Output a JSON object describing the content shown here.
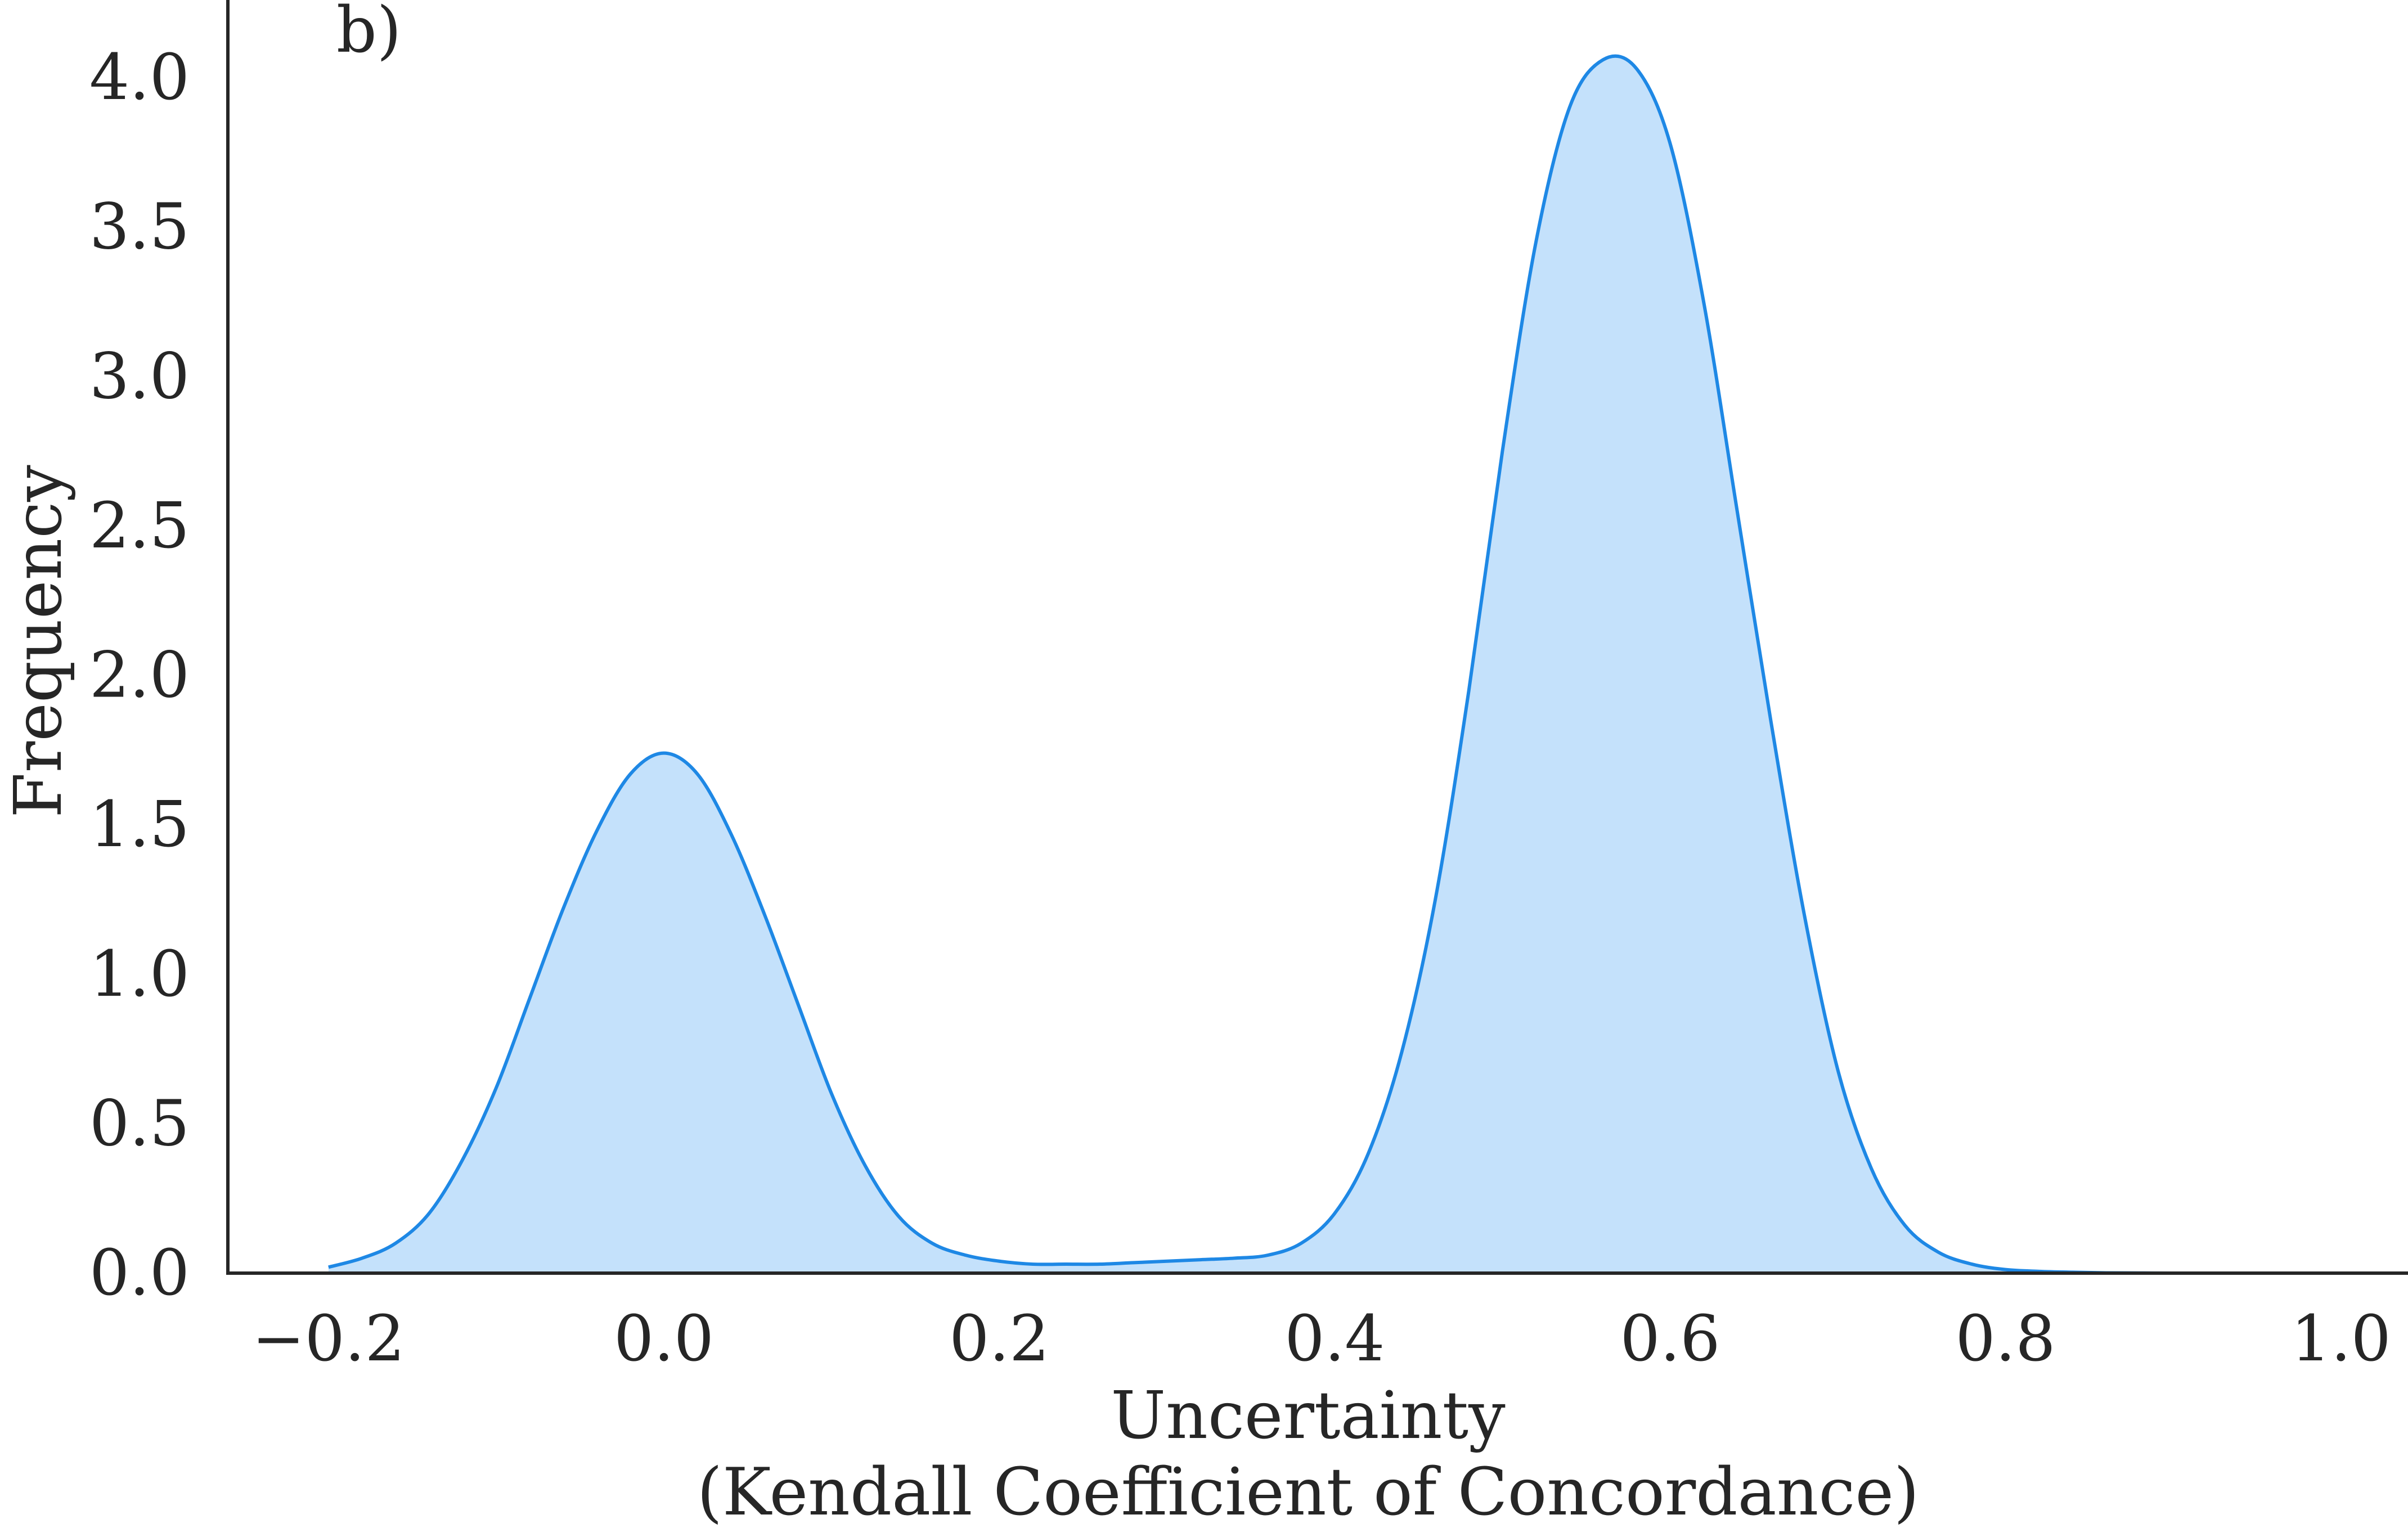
{
  "chart_data": {
    "type": "area",
    "panel_label": "b)",
    "xlabel": "Uncertainty",
    "xlabel_line2": "(Kendall Coefficient of Concordance)",
    "ylabel": "Frequency",
    "xlim": [
      -0.26,
      1.04
    ],
    "ylim": [
      0.0,
      4.26
    ],
    "xticks": [
      -0.2,
      0.0,
      0.2,
      0.4,
      0.6,
      0.8,
      1.0
    ],
    "xtick_labels": [
      "−0.2",
      "0.0",
      "0.2",
      "0.4",
      "0.6",
      "0.8",
      "1.0"
    ],
    "yticks": [
      0.0,
      0.5,
      1.0,
      1.5,
      2.0,
      2.5,
      3.0,
      3.5,
      4.0
    ],
    "ytick_labels": [
      "0.0",
      "0.5",
      "1.0",
      "1.5",
      "2.0",
      "2.5",
      "3.0",
      "3.5",
      "4.0"
    ],
    "grid": false,
    "colors": {
      "line": "#1e88e5",
      "fill": "#c4e1fb",
      "axis": "#262626"
    },
    "series": [
      {
        "x": [
          -0.2,
          -0.18,
          -0.16,
          -0.14,
          -0.12,
          -0.1,
          -0.08,
          -0.06,
          -0.04,
          -0.02,
          0.0,
          0.02,
          0.04,
          0.06,
          0.08,
          0.1,
          0.12,
          0.14,
          0.16,
          0.18,
          0.2,
          0.22,
          0.24,
          0.26,
          0.28,
          0.3,
          0.32,
          0.34,
          0.36,
          0.38,
          0.4,
          0.42,
          0.44,
          0.46,
          0.48,
          0.5,
          0.52,
          0.54,
          0.56,
          0.58,
          0.6,
          0.62,
          0.64,
          0.66,
          0.68,
          0.7,
          0.72,
          0.74,
          0.76,
          0.78,
          0.8,
          0.82,
          0.84,
          0.86,
          0.88,
          0.9
        ],
        "y": [
          0.02,
          0.05,
          0.1,
          0.2,
          0.38,
          0.62,
          0.92,
          1.22,
          1.48,
          1.67,
          1.74,
          1.67,
          1.47,
          1.2,
          0.9,
          0.6,
          0.36,
          0.19,
          0.1,
          0.06,
          0.04,
          0.03,
          0.03,
          0.03,
          0.035,
          0.04,
          0.045,
          0.05,
          0.06,
          0.1,
          0.2,
          0.4,
          0.74,
          1.25,
          1.95,
          2.75,
          3.45,
          3.9,
          4.06,
          4.03,
          3.78,
          3.25,
          2.55,
          1.85,
          1.2,
          0.68,
          0.35,
          0.16,
          0.07,
          0.03,
          0.012,
          0.006,
          0.003,
          0.001,
          0.0005,
          0.0
        ]
      }
    ]
  }
}
